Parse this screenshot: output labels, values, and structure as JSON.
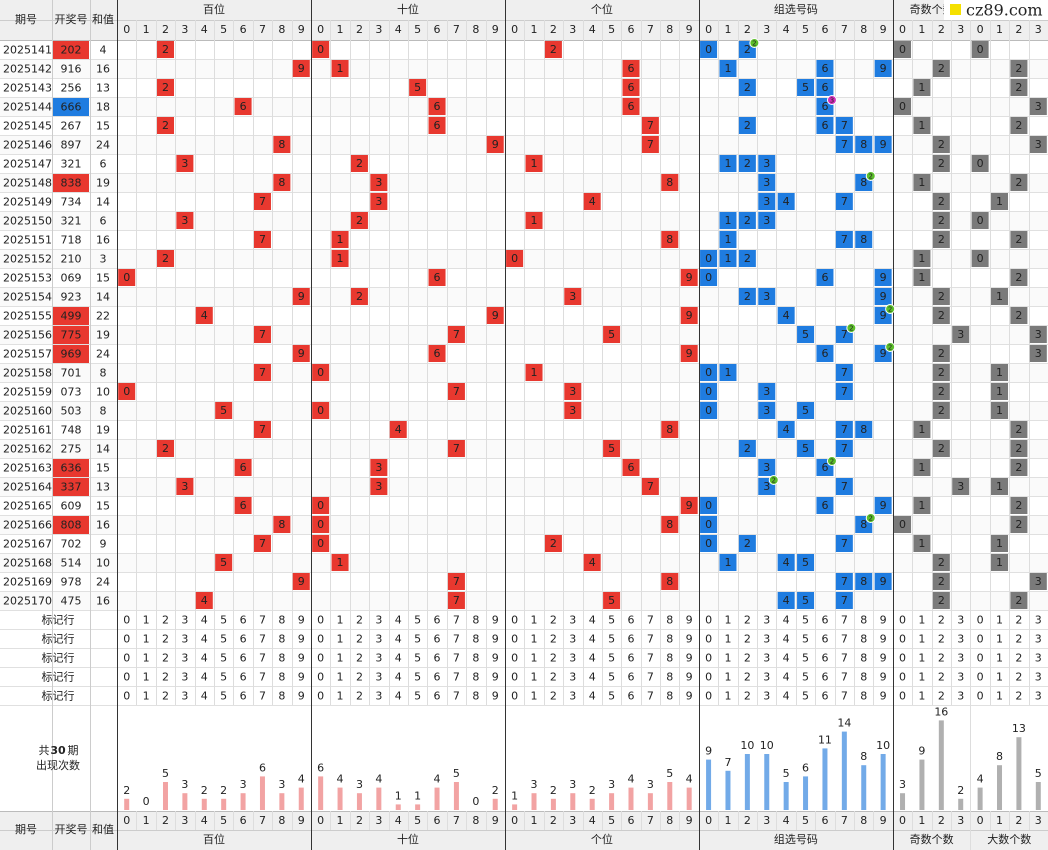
{
  "header": {
    "period": "期号",
    "number": "开奖号",
    "sum": "和值",
    "groups": [
      "百位",
      "十位",
      "个位",
      "组选号码",
      "奇数个数",
      "大数个数"
    ],
    "digits": [
      0,
      1,
      2,
      3,
      4,
      5,
      6,
      7,
      8,
      9
    ]
  },
  "watermark": "cz89.com",
  "draws": [
    [
      "2025141",
      "202",
      4
    ],
    [
      "2025142",
      "916",
      16
    ],
    [
      "2025143",
      "256",
      13
    ],
    [
      "2025144",
      "666",
      18
    ],
    [
      "2025145",
      "267",
      15
    ],
    [
      "2025146",
      "897",
      24
    ],
    [
      "2025147",
      "321",
      6
    ],
    [
      "2025148",
      "838",
      19
    ],
    [
      "2025149",
      "734",
      14
    ],
    [
      "2025150",
      "321",
      6
    ],
    [
      "2025151",
      "718",
      16
    ],
    [
      "2025152",
      "210",
      3
    ],
    [
      "2025153",
      "069",
      15
    ],
    [
      "2025154",
      "923",
      14
    ],
    [
      "2025155",
      "499",
      22
    ],
    [
      "2025156",
      "775",
      19
    ],
    [
      "2025157",
      "969",
      24
    ],
    [
      "2025158",
      "701",
      8
    ],
    [
      "2025159",
      "073",
      10
    ],
    [
      "2025160",
      "503",
      8
    ],
    [
      "2025161",
      "748",
      19
    ],
    [
      "2025162",
      "275",
      14
    ],
    [
      "2025163",
      "636",
      15
    ],
    [
      "2025164",
      "337",
      13
    ],
    [
      "2025165",
      "609",
      15
    ],
    [
      "2025166",
      "808",
      16
    ],
    [
      "2025167",
      "702",
      9
    ],
    [
      "2025168",
      "514",
      10
    ],
    [
      "2025169",
      "978",
      24
    ],
    [
      "2025170",
      "475",
      16
    ]
  ],
  "marker_label": "标记行",
  "stats": {
    "prefix": "共",
    "periods": 30,
    "suffix": "期",
    "label": "出现次数",
    "counts": [
      [
        2,
        0,
        5,
        3,
        2,
        2,
        3,
        6,
        3,
        4
      ],
      [
        6,
        4,
        3,
        4,
        1,
        1,
        4,
        5,
        0,
        2
      ],
      [
        1,
        3,
        2,
        3,
        2,
        3,
        4,
        3,
        5,
        4
      ],
      [
        9,
        7,
        10,
        10,
        5,
        6,
        11,
        14,
        8,
        10
      ],
      [
        3,
        9,
        16,
        2
      ],
      [
        4,
        8,
        13,
        5
      ]
    ]
  }
}
